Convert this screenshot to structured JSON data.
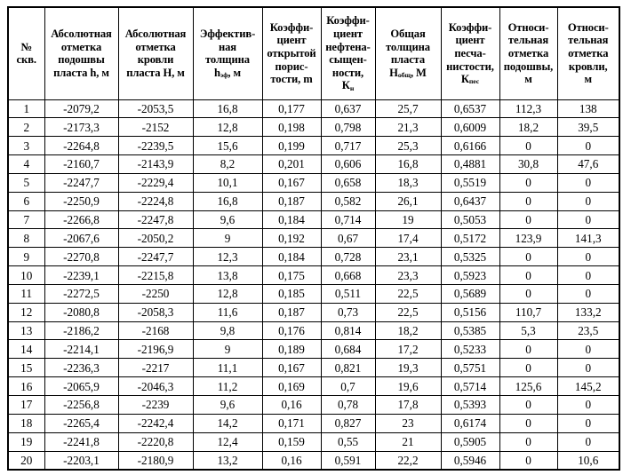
{
  "table": {
    "name": "well-parameters-table",
    "columns": [
      {
        "id": "well-number",
        "lines": [
          "№",
          "скв."
        ]
      },
      {
        "id": "abs-bottom-mark",
        "lines": [
          "Абсолютная",
          "отметка",
          "подошвы",
          "пласта h, м"
        ]
      },
      {
        "id": "abs-top-mark",
        "lines": [
          "Абсолютная",
          "отметка",
          "кровли",
          "пласта Н, м"
        ]
      },
      {
        "id": "effective-thickness",
        "lines": [
          "Эффектив-",
          "ная",
          "толщина",
          "h~эф~, м"
        ]
      },
      {
        "id": "open-porosity",
        "lines": [
          "Коэффи-",
          "циент",
          "открытой",
          "порис-",
          "тости, m"
        ]
      },
      {
        "id": "oil-saturation",
        "lines": [
          "Коэффи-",
          "циент",
          "нефтена-",
          "сыщен-",
          "ности,",
          "К~н~"
        ]
      },
      {
        "id": "total-thickness",
        "lines": [
          "Общая",
          "толщина",
          "пласта",
          "Н~общ~, М"
        ]
      },
      {
        "id": "sandiness",
        "lines": [
          "Коэффи-",
          "циент",
          "песча-",
          "нистости,",
          "К~пес~"
        ]
      },
      {
        "id": "rel-bottom-mark",
        "lines": [
          "Относи-",
          "тельная",
          "отметка",
          "подошвы,",
          "м"
        ]
      },
      {
        "id": "rel-top-mark",
        "lines": [
          "Относи-",
          "тельная",
          "отметка",
          "кровли,",
          "м"
        ]
      }
    ],
    "rows": [
      [
        "1",
        "-2079,2",
        "-2053,5",
        "16,8",
        "0,177",
        "0,637",
        "25,7",
        "0,6537",
        "112,3",
        "138"
      ],
      [
        "2",
        "-2173,3",
        "-2152",
        "12,8",
        "0,198",
        "0,798",
        "21,3",
        "0,6009",
        "18,2",
        "39,5"
      ],
      [
        "3",
        "-2264,8",
        "-2239,5",
        "15,6",
        "0,199",
        "0,717",
        "25,3",
        "0,6166",
        "0",
        "0"
      ],
      [
        "4",
        "-2160,7",
        "-2143,9",
        "8,2",
        "0,201",
        "0,606",
        "16,8",
        "0,4881",
        "30,8",
        "47,6"
      ],
      [
        "5",
        "-2247,7",
        "-2229,4",
        "10,1",
        "0,167",
        "0,658",
        "18,3",
        "0,5519",
        "0",
        "0"
      ],
      [
        "6",
        "-2250,9",
        "-2224,8",
        "16,8",
        "0,187",
        "0,582",
        "26,1",
        "0,6437",
        "0",
        "0"
      ],
      [
        "7",
        "-2266,8",
        "-2247,8",
        "9,6",
        "0,184",
        "0,714",
        "19",
        "0,5053",
        "0",
        "0"
      ],
      [
        "8",
        "-2067,6",
        "-2050,2",
        "9",
        "0,192",
        "0,67",
        "17,4",
        "0,5172",
        "123,9",
        "141,3"
      ],
      [
        "9",
        "-2270,8",
        "-2247,7",
        "12,3",
        "0,184",
        "0,728",
        "23,1",
        "0,5325",
        "0",
        "0"
      ],
      [
        "10",
        "-2239,1",
        "-2215,8",
        "13,8",
        "0,175",
        "0,668",
        "23,3",
        "0,5923",
        "0",
        "0"
      ],
      [
        "11",
        "-2272,5",
        "-2250",
        "12,8",
        "0,185",
        "0,511",
        "22,5",
        "0,5689",
        "0",
        "0"
      ],
      [
        "12",
        "-2080,8",
        "-2058,3",
        "11,6",
        "0,187",
        "0,73",
        "22,5",
        "0,5156",
        "110,7",
        "133,2"
      ],
      [
        "13",
        "-2186,2",
        "-2168",
        "9,8",
        "0,176",
        "0,814",
        "18,2",
        "0,5385",
        "5,3",
        "23,5"
      ],
      [
        "14",
        "-2214,1",
        "-2196,9",
        "9",
        "0,189",
        "0,684",
        "17,2",
        "0,5233",
        "0",
        "0"
      ],
      [
        "15",
        "-2236,3",
        "-2217",
        "11,1",
        "0,167",
        "0,821",
        "19,3",
        "0,5751",
        "0",
        "0"
      ],
      [
        "16",
        "-2065,9",
        "-2046,3",
        "11,2",
        "0,169",
        "0,7",
        "19,6",
        "0,5714",
        "125,6",
        "145,2"
      ],
      [
        "17",
        "-2256,8",
        "-2239",
        "9,6",
        "0,16",
        "0,78",
        "17,8",
        "0,5393",
        "0",
        "0"
      ],
      [
        "18",
        "-2265,4",
        "-2242,4",
        "14,2",
        "0,171",
        "0,827",
        "23",
        "0,6174",
        "0",
        "0"
      ],
      [
        "19",
        "-2241,8",
        "-2220,8",
        "12,4",
        "0,159",
        "0,55",
        "21",
        "0,5905",
        "0",
        "0"
      ],
      [
        "20",
        "-2203,1",
        "-2180,9",
        "13,2",
        "0,16",
        "0,591",
        "22,2",
        "0,5946",
        "0",
        "10,6"
      ]
    ]
  }
}
